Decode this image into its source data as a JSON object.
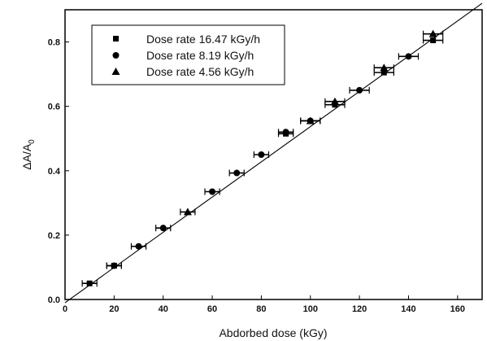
{
  "chart_data": {
    "type": "scatter",
    "title": "",
    "xlabel": "Abdorbed dose (kGy)",
    "ylabel": {
      "main": "ΔA/A",
      "sub": "0"
    },
    "xlim": [
      0,
      170
    ],
    "ylim": [
      0,
      0.9
    ],
    "xticks": [
      0,
      20,
      40,
      60,
      80,
      100,
      120,
      140,
      160
    ],
    "yticks": [
      0.0,
      0.2,
      0.4,
      0.6,
      0.8
    ],
    "grid": false,
    "legend_position": "top-left",
    "fit_line": {
      "x": [
        0,
        170
      ],
      "y": [
        -0.01,
        0.92
      ]
    },
    "series": [
      {
        "name": "Dose rate 16.47 kGy/h",
        "marker": "square",
        "points": [
          {
            "x": 10,
            "y": 0.05,
            "xerr": 3
          },
          {
            "x": 20,
            "y": 0.105,
            "xerr": 3
          },
          {
            "x": 90,
            "y": 0.515,
            "xerr": 3
          },
          {
            "x": 110,
            "y": 0.605,
            "xerr": 4
          },
          {
            "x": 130,
            "y": 0.705,
            "xerr": 4
          },
          {
            "x": 150,
            "y": 0.805,
            "xerr": 4
          }
        ]
      },
      {
        "name": "Dose rate 8.19 kGy/h",
        "marker": "circle",
        "points": [
          {
            "x": 20,
            "y": 0.105,
            "xerr": 3
          },
          {
            "x": 30,
            "y": 0.165,
            "xerr": 3
          },
          {
            "x": 40,
            "y": 0.222,
            "xerr": 3
          },
          {
            "x": 60,
            "y": 0.335,
            "xerr": 3
          },
          {
            "x": 70,
            "y": 0.393,
            "xerr": 3
          },
          {
            "x": 80,
            "y": 0.45,
            "xerr": 3
          },
          {
            "x": 90,
            "y": 0.52,
            "xerr": 3
          },
          {
            "x": 100,
            "y": 0.555,
            "xerr": 4
          },
          {
            "x": 120,
            "y": 0.65,
            "xerr": 4
          },
          {
            "x": 140,
            "y": 0.755,
            "xerr": 4
          }
        ]
      },
      {
        "name": "Dose rate 4.56 kGy/h",
        "marker": "triangle",
        "points": [
          {
            "x": 50,
            "y": 0.272,
            "xerr": 3
          },
          {
            "x": 100,
            "y": 0.555,
            "xerr": 4
          },
          {
            "x": 110,
            "y": 0.615,
            "xerr": 4
          },
          {
            "x": 130,
            "y": 0.72,
            "xerr": 4
          },
          {
            "x": 150,
            "y": 0.825,
            "xerr": 4
          }
        ]
      }
    ]
  }
}
